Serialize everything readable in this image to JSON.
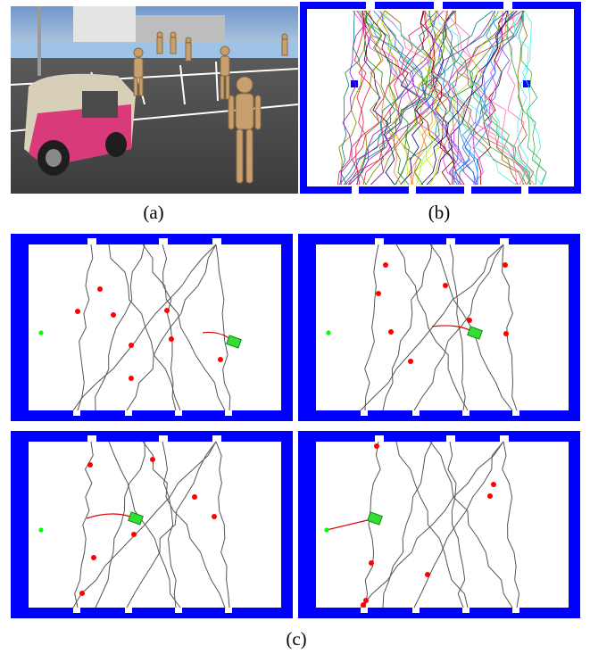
{
  "figure": {
    "captions": {
      "a": "(a)",
      "b": "(b)",
      "c": "(c)"
    }
  },
  "colors": {
    "border": "#0000ff",
    "agent_dot": "#ff0000",
    "goal_dot": "#00ff00",
    "vehicle": "#33dd33",
    "vehicle_path": "#dd0000",
    "pedestrian_path": "#555555",
    "sky": "#8fb2d8",
    "ground": "#4a4a4a",
    "building": "#d8d8d8",
    "cart_body": "#d8cfb8",
    "cart_accent": "#d83a7a",
    "mannequin": "#c8a070"
  },
  "scene": {
    "description_icon": "simulation-3d-scene"
  },
  "panel_c": {
    "panels": [
      {
        "id": "c1"
      },
      {
        "id": "c2"
      },
      {
        "id": "c3"
      },
      {
        "id": "c4"
      }
    ]
  }
}
